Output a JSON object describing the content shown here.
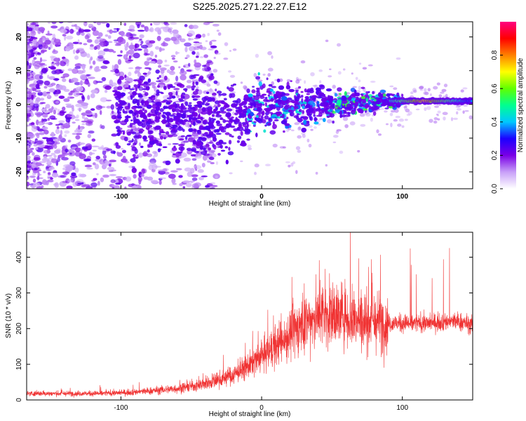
{
  "title": "S225.2025.271.22.27.E12",
  "chart_data": [
    {
      "type": "heatmap",
      "title": "S225.2025.271.22.27.E12",
      "xlabel": "Height of straight line (km)",
      "ylabel": "Frequency (Hz)",
      "xlim": [
        -167,
        150
      ],
      "ylim": [
        -25,
        24.5
      ],
      "xticks": [
        -100,
        0,
        100
      ],
      "yticks": [
        -20,
        -10,
        0,
        10,
        20
      ],
      "colorbar": {
        "label": "Normalized spectral amplitude",
        "range": [
          0.0,
          1.0
        ],
        "ticks": [
          0.0,
          0.2,
          0.4,
          0.6,
          0.8
        ],
        "colors": [
          "#ffffff",
          "#c8a0f8",
          "#7a00e6",
          "#1c00ff",
          "#00c8ff",
          "#00ff90",
          "#60ff00",
          "#ffff00",
          "#ff8000",
          "#ff0000",
          "#ff0080"
        ]
      },
      "description_of_signal": "scattered purple noise left of -40 km, dense cluster -100 to -20 km near -5 Hz, narrowing band around 0 Hz from 0 to 100 km, bright red narrow line near 1 Hz from 95 to 150 km",
      "series": [
        {
          "name": "band_center_hz",
          "x": [
            -40,
            -20,
            0,
            20,
            40,
            60,
            80,
            100,
            120,
            150
          ],
          "values": [
            -3,
            -5,
            0,
            0,
            0,
            0,
            1,
            1,
            1,
            0
          ]
        }
      ]
    },
    {
      "type": "line",
      "xlabel": "Height of straight line (km)",
      "ylabel": "SNR (10 * v/v)",
      "xlim": [
        -167,
        150
      ],
      "ylim": [
        0,
        470
      ],
      "xticks": [
        -100,
        0,
        100
      ],
      "yticks": [
        0,
        100,
        200,
        300,
        400
      ],
      "color": "#f03232",
      "series": [
        {
          "name": "SNR",
          "x": [
            -167,
            -140,
            -120,
            -100,
            -80,
            -60,
            -40,
            -30,
            -20,
            -10,
            0,
            10,
            20,
            30,
            40,
            50,
            60,
            70,
            80,
            90,
            100,
            110,
            120,
            130,
            140,
            150
          ],
          "values": [
            18,
            18,
            18,
            20,
            25,
            32,
            45,
            58,
            70,
            95,
            120,
            150,
            185,
            215,
            235,
            240,
            235,
            225,
            220,
            215,
            215,
            215,
            215,
            220,
            220,
            210
          ]
        }
      ]
    }
  ]
}
